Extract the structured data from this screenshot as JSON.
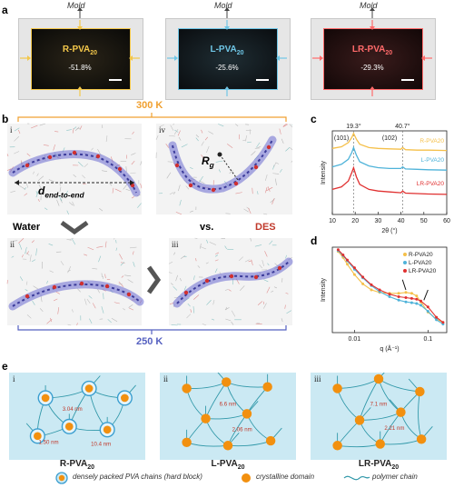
{
  "panels": {
    "a": "a",
    "b": "b",
    "c": "c",
    "d": "d",
    "e": "e"
  },
  "panel_a": {
    "mold_label": "Mold",
    "films": [
      {
        "name": "R-PVA",
        "sub": "20",
        "value": "-51.8%",
        "color": "#f3c74a"
      },
      {
        "name": "L-PVA",
        "sub": "20",
        "value": "-25.6%",
        "color": "#6fc6e6"
      },
      {
        "name": "LR-PVA",
        "sub": "20",
        "value": "-29.3%",
        "color": "#ff6a6a"
      }
    ]
  },
  "panel_b": {
    "temp_high": "300 K",
    "temp_low": "250 K",
    "water": "Water",
    "vs": "vs.",
    "des": "DES",
    "d_label": "d",
    "d_sub": "end-to-end",
    "rg_label": "R",
    "rg_sub": "g",
    "roman": [
      "i",
      "iv",
      "ii",
      "iii"
    ]
  },
  "chart_data": [
    {
      "type": "line",
      "panel": "c",
      "xlabel": "2θ (°)",
      "ylabel": "Intensity",
      "xlim": [
        10,
        60
      ],
      "xticks": [
        10,
        20,
        30,
        40,
        50,
        60
      ],
      "annotations": [
        "19.3°",
        "40.7°",
        "(101)",
        "(102)"
      ],
      "series": [
        {
          "name": "R-PVA20",
          "color": "#f5c04a",
          "x": [
            10,
            14,
            17,
            18.5,
            19.3,
            20.5,
            22,
            26,
            30,
            35,
            40,
            40.7,
            42,
            47,
            52,
            60
          ],
          "y": [
            0.79,
            0.81,
            0.86,
            0.92,
            0.97,
            0.9,
            0.84,
            0.8,
            0.79,
            0.785,
            0.78,
            0.8,
            0.775,
            0.77,
            0.77,
            0.765
          ]
        },
        {
          "name": "L-PVA20",
          "color": "#4fb3d9",
          "x": [
            10,
            14,
            17,
            18.5,
            19.3,
            20.5,
            22,
            26,
            30,
            35,
            40,
            40.7,
            42,
            47,
            52,
            60
          ],
          "y": [
            0.57,
            0.6,
            0.66,
            0.74,
            0.8,
            0.71,
            0.63,
            0.58,
            0.56,
            0.55,
            0.55,
            0.57,
            0.545,
            0.54,
            0.535,
            0.53
          ]
        },
        {
          "name": "LR-PVA20",
          "color": "#e03030",
          "x": [
            10,
            14,
            17,
            18.5,
            19.3,
            20.5,
            22,
            26,
            30,
            35,
            40,
            40.7,
            42,
            47,
            52,
            60
          ],
          "y": [
            0.3,
            0.33,
            0.4,
            0.5,
            0.56,
            0.45,
            0.36,
            0.3,
            0.28,
            0.27,
            0.26,
            0.28,
            0.255,
            0.25,
            0.245,
            0.24
          ]
        }
      ]
    },
    {
      "type": "scatter",
      "panel": "d",
      "xlabel": "q (Å⁻¹)",
      "ylabel": "Intensity",
      "xscale": "log",
      "xticks": [
        0.01,
        0.1
      ],
      "series": [
        {
          "name": "R-PVA20",
          "color": "#f5c04a",
          "x": [
            0.006,
            0.007,
            0.008,
            0.01,
            0.013,
            0.017,
            0.022,
            0.03,
            0.04,
            0.05,
            0.06,
            0.07,
            0.08,
            0.1,
            0.13,
            0.16
          ],
          "y": [
            0.95,
            0.88,
            0.8,
            0.68,
            0.57,
            0.5,
            0.47,
            0.46,
            0.46,
            0.47,
            0.46,
            0.43,
            0.36,
            0.24,
            0.16,
            0.12
          ]
        },
        {
          "name": "L-PVA20",
          "color": "#4fb3d9",
          "x": [
            0.006,
            0.007,
            0.008,
            0.01,
            0.013,
            0.017,
            0.022,
            0.03,
            0.04,
            0.05,
            0.06,
            0.07,
            0.08,
            0.1,
            0.13,
            0.16
          ],
          "y": [
            0.96,
            0.9,
            0.84,
            0.74,
            0.64,
            0.55,
            0.48,
            0.42,
            0.38,
            0.36,
            0.35,
            0.34,
            0.32,
            0.25,
            0.15,
            0.1
          ]
        },
        {
          "name": "LR-PVA20",
          "color": "#e03030",
          "x": [
            0.006,
            0.007,
            0.008,
            0.01,
            0.013,
            0.017,
            0.022,
            0.03,
            0.04,
            0.05,
            0.06,
            0.07,
            0.08,
            0.1,
            0.13,
            0.16
          ],
          "y": [
            0.97,
            0.91,
            0.85,
            0.76,
            0.65,
            0.56,
            0.5,
            0.45,
            0.42,
            0.41,
            0.4,
            0.39,
            0.37,
            0.3,
            0.18,
            0.12
          ]
        }
      ]
    }
  ],
  "panel_e": {
    "boxes": [
      {
        "roman": "i",
        "name": "R-PVA",
        "sub": "20",
        "dims": [
          "3.04 nm",
          "1.50 nm",
          "10.4 nm"
        ]
      },
      {
        "roman": "ii",
        "name": "L-PVA",
        "sub": "20",
        "dims": [
          "6.6 nm",
          "2.06 nm"
        ]
      },
      {
        "roman": "iii",
        "name": "LR-PVA",
        "sub": "20",
        "dims": [
          "7.1 nm",
          "2.21 nm"
        ]
      }
    ],
    "legend": [
      "densely packed PVA chains (hard block)",
      "crystalline domain",
      "polymer chain"
    ]
  }
}
